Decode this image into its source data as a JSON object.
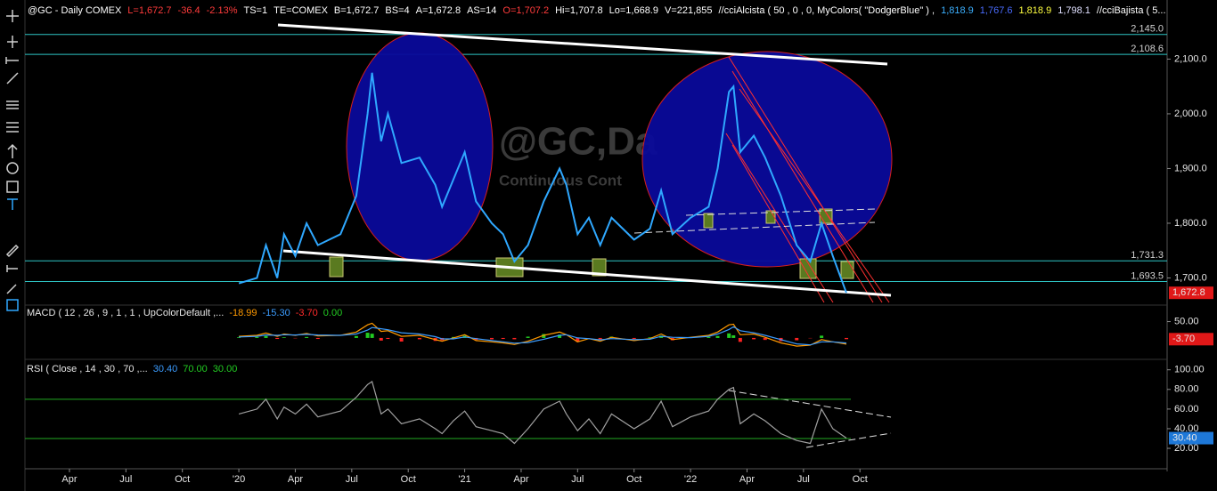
{
  "header": {
    "items": [
      "@GC - Daily  COMEX",
      "L=1,672.7",
      "-36.4",
      "-2.13%",
      "TS=1",
      "TE=COMEX",
      "B=1,672.7",
      "BS=4",
      "A=1,672.8",
      "AS=14",
      "O=1,707.2",
      "Hi=1,707.8",
      "Lo=1,668.9",
      "V=221,855",
      "//cciAlcista ( 50 , 0 , 0, MyColors( \"DodgerBlue\" ) ,",
      "1,818.9",
      "1,767.6",
      "1,818.9",
      "1,798.1",
      "//cciBajista ( 5..."
    ]
  },
  "chart_data": [
    {
      "type": "line",
      "watermark": [
        "@GC,Da",
        "Continuous Cont"
      ],
      "x": [
        2020.0,
        2020.08,
        2020.12,
        2020.17,
        2020.2,
        2020.25,
        2020.3,
        2020.35,
        2020.45,
        2020.52,
        2020.57,
        2020.59,
        2020.63,
        2020.66,
        2020.72,
        2020.8,
        2020.87,
        2020.9,
        2020.95,
        2021.0,
        2021.05,
        2021.12,
        2021.17,
        2021.22,
        2021.28,
        2021.35,
        2021.42,
        2021.45,
        2021.5,
        2021.55,
        2021.6,
        2021.65,
        2021.75,
        2021.82,
        2021.87,
        2021.92,
        2022.0,
        2022.08,
        2022.12,
        2022.17,
        2022.19,
        2022.22,
        2022.28,
        2022.33,
        2022.4,
        2022.47,
        2022.53,
        2022.58,
        2022.63,
        2022.69
      ],
      "series": [
        {
          "color": "#2fa8ff",
          "values": [
            1690,
            1700,
            1760,
            1700,
            1780,
            1740,
            1800,
            1760,
            1780,
            1850,
            2000,
            2075,
            1950,
            2000,
            1910,
            1920,
            1870,
            1830,
            1880,
            1930,
            1840,
            1800,
            1780,
            1730,
            1760,
            1840,
            1900,
            1870,
            1780,
            1810,
            1760,
            1810,
            1770,
            1790,
            1860,
            1780,
            1810,
            1830,
            1900,
            2040,
            2050,
            1930,
            1960,
            1920,
            1850,
            1760,
            1730,
            1800,
            1740,
            1672.8
          ]
        }
      ],
      "xlim": [
        2019.053,
        2024.11
      ],
      "ylim": [
        1652,
        2208
      ],
      "yticks": [
        {
          "value": 2100,
          "label": "2,100.0"
        },
        {
          "value": 2000,
          "label": "2,000.0"
        },
        {
          "value": 1900,
          "label": "1,900.0"
        },
        {
          "value": 1800,
          "label": "1,800.0"
        },
        {
          "value": 1700,
          "label": "1,700.0"
        }
      ],
      "levels": [
        {
          "value": 2145,
          "label": "2,145.0"
        },
        {
          "value": 2108.6,
          "label": "2,108.6"
        },
        {
          "value": 1731.3,
          "label": "1,731.3"
        },
        {
          "value": 1693.5,
          "label": "1,693.5"
        }
      ],
      "last": {
        "value": 1672.8,
        "label": "1,672.8"
      }
    },
    {
      "type": "macd",
      "title": "MACD ( 12 , 26 , 9 , 1 , 1 , UpColorDefault ,...",
      "readouts": [
        {
          "value": -18.99,
          "label": "-18.99",
          "color": "#ff9900"
        },
        {
          "value": -15.3,
          "label": "-15.30",
          "color": "#3b9cff"
        },
        {
          "value": -3.7,
          "label": "-3.70",
          "color": "#ff2a2a"
        },
        {
          "value": 0,
          "label": "0.00",
          "color": "#22cc22"
        }
      ],
      "x": [
        2020.0,
        2020.08,
        2020.12,
        2020.17,
        2020.2,
        2020.25,
        2020.3,
        2020.35,
        2020.45,
        2020.52,
        2020.57,
        2020.59,
        2020.63,
        2020.66,
        2020.72,
        2020.8,
        2020.87,
        2020.9,
        2020.95,
        2021.0,
        2021.05,
        2021.12,
        2021.17,
        2021.22,
        2021.28,
        2021.35,
        2021.42,
        2021.45,
        2021.5,
        2021.55,
        2021.6,
        2021.65,
        2021.75,
        2021.82,
        2021.87,
        2021.92,
        2022.0,
        2022.08,
        2022.12,
        2022.17,
        2022.19,
        2022.22,
        2022.28,
        2022.33,
        2022.4,
        2022.47,
        2022.53,
        2022.58,
        2022.63,
        2022.69
      ],
      "series": [
        {
          "color": "#ff9900",
          "values": [
            5,
            8,
            15,
            5,
            12,
            8,
            14,
            6,
            8,
            18,
            40,
            45,
            20,
            22,
            5,
            8,
            -5,
            -10,
            0,
            10,
            -8,
            -12,
            -15,
            -20,
            -10,
            8,
            18,
            10,
            -12,
            -2,
            -10,
            2,
            -8,
            -2,
            12,
            -5,
            2,
            8,
            18,
            40,
            42,
            10,
            12,
            2,
            -15,
            -25,
            -22,
            -5,
            -12,
            -18.99
          ]
        },
        {
          "color": "#3b9cff",
          "values": [
            3,
            5,
            9,
            8,
            10,
            9,
            11,
            9,
            8,
            12,
            24,
            32,
            28,
            25,
            16,
            12,
            4,
            -3,
            -3,
            3,
            -2,
            -8,
            -12,
            -16,
            -14,
            -4,
            8,
            10,
            0,
            -2,
            -6,
            -2,
            -5,
            -4,
            5,
            2,
            1,
            5,
            12,
            26,
            34,
            22,
            16,
            8,
            -5,
            -18,
            -21,
            -12,
            -12,
            -15.3
          ]
        }
      ],
      "histogram": {
        "up_color": "#22cc22",
        "down_color": "#ff2222",
        "values": [
          2,
          3,
          6,
          -3,
          2,
          -1,
          3,
          -3,
          0,
          6,
          16,
          13,
          -8,
          -3,
          -11,
          -4,
          -9,
          -7,
          3,
          7,
          -6,
          -4,
          -3,
          -4,
          4,
          12,
          10,
          0,
          -12,
          0,
          -4,
          4,
          -3,
          2,
          7,
          -7,
          1,
          3,
          6,
          14,
          8,
          -12,
          -4,
          -6,
          -10,
          -7,
          -1,
          7,
          0,
          -3.7
        ]
      },
      "xlim": [
        2019.053,
        2024.11
      ],
      "ylim": [
        -60,
        95
      ],
      "yticks": [
        {
          "value": 50,
          "label": "50.00"
        }
      ],
      "last": {
        "value": -3.7,
        "label": "-3.70"
      }
    },
    {
      "type": "rsi",
      "title": "RSI ( Close , 14 , 30 , 70 ,...",
      "readouts": [
        {
          "value": 30.4,
          "label": "30.40",
          "color": "#3b9cff"
        },
        {
          "value": 70,
          "label": "70.00",
          "color": "#22cc22"
        },
        {
          "value": 30,
          "label": "30.00",
          "color": "#22cc22"
        }
      ],
      "x": [
        2020.0,
        2020.08,
        2020.12,
        2020.17,
        2020.2,
        2020.25,
        2020.3,
        2020.35,
        2020.45,
        2020.52,
        2020.57,
        2020.59,
        2020.63,
        2020.66,
        2020.72,
        2020.8,
        2020.87,
        2020.9,
        2020.95,
        2021.0,
        2021.05,
        2021.12,
        2021.17,
        2021.22,
        2021.28,
        2021.35,
        2021.42,
        2021.45,
        2021.5,
        2021.55,
        2021.6,
        2021.65,
        2021.75,
        2021.82,
        2021.87,
        2021.92,
        2022.0,
        2022.08,
        2022.12,
        2022.17,
        2022.19,
        2022.22,
        2022.28,
        2022.33,
        2022.4,
        2022.47,
        2022.53,
        2022.58,
        2022.63,
        2022.69
      ],
      "series": [
        {
          "color": "#a0a0a0",
          "values": [
            55,
            60,
            70,
            50,
            62,
            55,
            65,
            52,
            58,
            72,
            85,
            88,
            55,
            60,
            45,
            50,
            40,
            35,
            48,
            58,
            42,
            38,
            35,
            25,
            40,
            60,
            68,
            55,
            38,
            50,
            35,
            55,
            40,
            50,
            68,
            42,
            52,
            58,
            70,
            80,
            82,
            45,
            55,
            48,
            35,
            28,
            25,
            60,
            40,
            30.4
          ]
        }
      ],
      "bands": [
        70,
        30
      ],
      "band_color": "#22aa22",
      "xlim": [
        2019.053,
        2024.11
      ],
      "ylim": [
        1,
        107
      ],
      "yticks": [
        {
          "value": 100,
          "label": "100.00"
        },
        {
          "value": 80,
          "label": "80.00"
        },
        {
          "value": 60,
          "label": "60.00"
        },
        {
          "value": 40,
          "label": "40.00"
        },
        {
          "value": 20,
          "label": "20.00"
        }
      ],
      "last": {
        "value": 30.4,
        "label": "30.40"
      },
      "xticks": [
        {
          "value": 2019.25,
          "label": "Apr"
        },
        {
          "value": 2019.5,
          "label": "Jul"
        },
        {
          "value": 2019.75,
          "label": "Oct"
        },
        {
          "value": 2020,
          "label": "'20"
        },
        {
          "value": 2020.25,
          "label": "Apr"
        },
        {
          "value": 2020.5,
          "label": "Jul"
        },
        {
          "value": 2020.75,
          "label": "Oct"
        },
        {
          "value": 2021,
          "label": "'21"
        },
        {
          "value": 2021.25,
          "label": "Apr"
        },
        {
          "value": 2021.5,
          "label": "Jul"
        },
        {
          "value": 2021.75,
          "label": "Oct"
        },
        {
          "value": 2022,
          "label": "'22"
        },
        {
          "value": 2022.25,
          "label": "Apr"
        },
        {
          "value": 2022.5,
          "label": "Jul"
        },
        {
          "value": 2022.75,
          "label": "Oct"
        }
      ]
    }
  ]
}
